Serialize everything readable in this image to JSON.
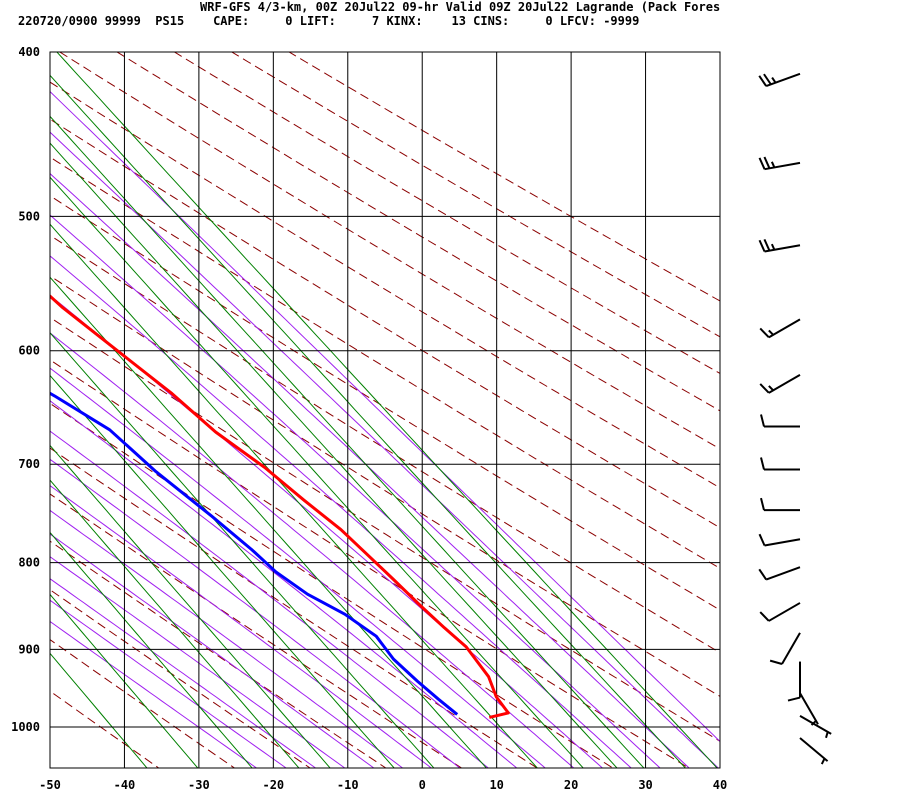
{
  "header": {
    "line1": "WRF-GFS 4/3-km, 00Z 20Jul22 09-hr Valid 09Z 20Jul22 Lagrande (Pack Fores",
    "line2": "220720/0900 99999  PS15    CAPE:     0 LIFT:     7 KINX:    13 CINS:     0 LFCV: -9999"
  },
  "chart_data": {
    "type": "line",
    "title": "",
    "xlabel": "",
    "ylabel": "",
    "x_ticks": [
      -50,
      -40,
      -30,
      -20,
      -10,
      0,
      10,
      20,
      30,
      40
    ],
    "y_ticks": [
      400,
      500,
      600,
      700,
      800,
      900,
      1000
    ],
    "xlim": [
      -50,
      40
    ],
    "ylim": [
      1040,
      400
    ],
    "y_scale": "log",
    "grid": true,
    "series": [
      {
        "color": "#ff0000",
        "points": [
          [
            -22,
            409
          ],
          [
            -14,
            469
          ],
          [
            -11,
            505
          ],
          [
            -8,
            535
          ],
          [
            -6,
            566
          ],
          [
            -3,
            600
          ],
          [
            0,
            636
          ],
          [
            2,
            670
          ],
          [
            5,
            703
          ],
          [
            7,
            735
          ],
          [
            9,
            765
          ],
          [
            10,
            791
          ],
          [
            11,
            818
          ],
          [
            12,
            848
          ],
          [
            13,
            874
          ],
          [
            14,
            897
          ],
          [
            14,
            912
          ],
          [
            14,
            934
          ],
          [
            13,
            960
          ],
          [
            13,
            981
          ],
          [
            10,
            987
          ]
        ]
      },
      {
        "color": "#0000ff",
        "points": [
          [
            -43,
            412
          ],
          [
            -43,
            433
          ],
          [
            -44,
            460
          ],
          [
            -43,
            485
          ],
          [
            -42,
            521
          ],
          [
            -40,
            536
          ],
          [
            -33,
            557
          ],
          [
            -27,
            586
          ],
          [
            -21,
            606
          ],
          [
            -16,
            638
          ],
          [
            -12,
            668
          ],
          [
            -10,
            707
          ],
          [
            -7,
            751
          ],
          [
            -5,
            786
          ],
          [
            -4,
            810
          ],
          [
            -2,
            835
          ],
          [
            1,
            858
          ],
          [
            3,
            884
          ],
          [
            3,
            912
          ],
          [
            4,
            940
          ],
          [
            5,
            963
          ],
          [
            6,
            983
          ]
        ]
      }
    ],
    "wind_barbs": [
      {
        "p": 412,
        "speed": 25,
        "dir": 250
      },
      {
        "p": 465,
        "speed": 25,
        "dir": 260
      },
      {
        "p": 520,
        "speed": 25,
        "dir": 260
      },
      {
        "p": 575,
        "speed": 15,
        "dir": 240
      },
      {
        "p": 620,
        "speed": 15,
        "dir": 240
      },
      {
        "p": 665,
        "speed": 10,
        "dir": 270
      },
      {
        "p": 705,
        "speed": 10,
        "dir": 270
      },
      {
        "p": 745,
        "speed": 10,
        "dir": 270
      },
      {
        "p": 775,
        "speed": 10,
        "dir": 260
      },
      {
        "p": 805,
        "speed": 10,
        "dir": 250
      },
      {
        "p": 845,
        "speed": 10,
        "dir": 240
      },
      {
        "p": 880,
        "speed": 10,
        "dir": 210
      },
      {
        "p": 915,
        "speed": 10,
        "dir": 180
      },
      {
        "p": 955,
        "speed": 5,
        "dir": 150
      },
      {
        "p": 985,
        "speed": 5,
        "dir": 120
      },
      {
        "p": 1015,
        "speed": 5,
        "dir": 130
      }
    ]
  },
  "colors": {
    "temperature": "#ff0000",
    "dewpoint": "#0000ff",
    "dry_adiabat": "#8b0000",
    "moist_adiabat": "#a020f0",
    "mixing_ratio": "#008000",
    "grid": "#000000"
  }
}
